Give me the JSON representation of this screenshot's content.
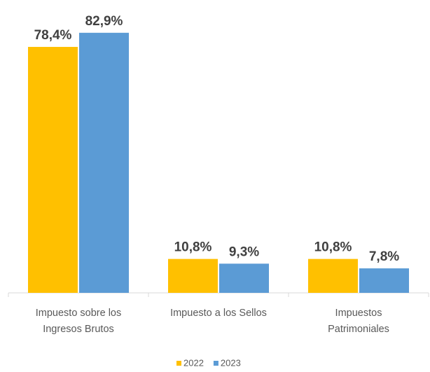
{
  "chart_data": {
    "type": "bar",
    "categories": [
      "Impuesto sobre los\nIngresos Brutos",
      "Impuesto a los Sellos",
      "Impuestos\nPatrimoniales"
    ],
    "series": [
      {
        "name": "2022",
        "color": "#FFC000",
        "values": [
          78.4,
          10.8,
          10.8
        ],
        "value_labels": [
          "78,4%",
          "10,8%",
          "10,8%"
        ]
      },
      {
        "name": "2023",
        "color": "#5B9BD5",
        "values": [
          82.9,
          9.3,
          7.8
        ],
        "value_labels": [
          "82,9%",
          "9,3%",
          "7,8%"
        ]
      }
    ],
    "ylim": [
      0,
      90
    ],
    "legend": "bottom"
  }
}
